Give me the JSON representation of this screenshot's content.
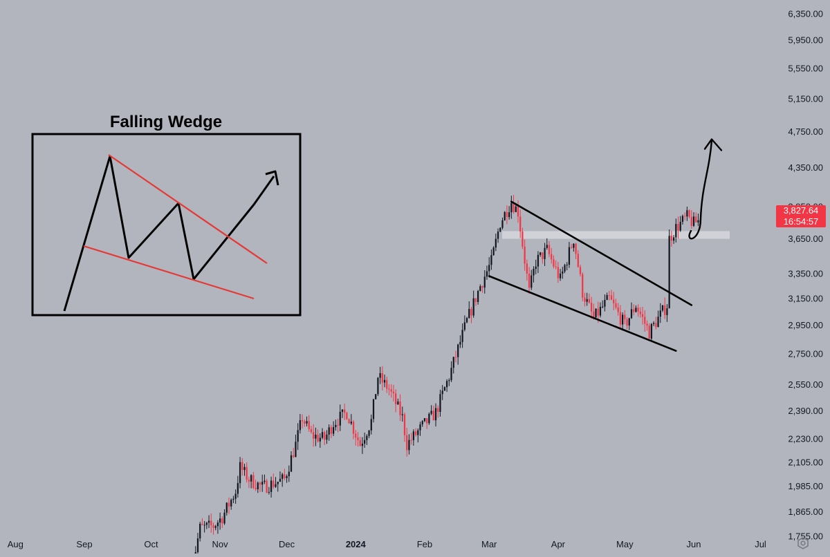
{
  "chart_data": {
    "type": "candlestick",
    "title": "",
    "xlabel": "",
    "ylabel": "",
    "y_scale": "log",
    "ylim": [
      1700,
      6500
    ],
    "y_ticks": [
      1755,
      1865,
      1985,
      2105,
      2230,
      2390,
      2550,
      2750,
      2950,
      3150,
      3350,
      3650,
      3950,
      4350,
      4750,
      5150,
      5550,
      5950,
      6350
    ],
    "y_tick_labels": [
      "1,755.00",
      "1,865.00",
      "1,985.00",
      "2,105.00",
      "2,230.00",
      "2,390.00",
      "2,550.00",
      "2,750.00",
      "2,950.00",
      "3,150.00",
      "3,350.00",
      "3,650.00",
      "3,950.00",
      "4,350.00",
      "4,750.00",
      "5,150.00",
      "5,550.00",
      "5,950.00",
      "6,350.00"
    ],
    "x_tick_labels": [
      "Aug",
      "Sep",
      "Oct",
      "Nov",
      "Dec",
      "2024",
      "Feb",
      "Mar",
      "Apr",
      "May",
      "Jun",
      "Jul"
    ],
    "price_anchors": [
      [
        "2023-10-19",
        1610
      ],
      [
        "2023-10-23",
        1790
      ],
      [
        "2023-10-29",
        1800
      ],
      [
        "2023-11-02",
        1840
      ],
      [
        "2023-11-08",
        1960
      ],
      [
        "2023-11-10",
        2080
      ],
      [
        "2023-11-14",
        2020
      ],
      [
        "2023-11-20",
        1980
      ],
      [
        "2023-11-30",
        2020
      ],
      [
        "2023-12-05",
        2200
      ],
      [
        "2023-12-08",
        2350
      ],
      [
        "2023-12-12",
        2250
      ],
      [
        "2023-12-18",
        2230
      ],
      [
        "2023-12-22",
        2320
      ],
      [
        "2023-12-28",
        2380
      ],
      [
        "2024-01-03",
        2200
      ],
      [
        "2024-01-08",
        2330
      ],
      [
        "2024-01-11",
        2600
      ],
      [
        "2024-01-16",
        2520
      ],
      [
        "2024-01-22",
        2350
      ],
      [
        "2024-01-24",
        2200
      ],
      [
        "2024-01-31",
        2300
      ],
      [
        "2024-02-06",
        2380
      ],
      [
        "2024-02-12",
        2600
      ],
      [
        "2024-02-20",
        2980
      ],
      [
        "2024-02-26",
        3250
      ],
      [
        "2024-03-02",
        3450
      ],
      [
        "2024-03-06",
        3800
      ],
      [
        "2024-03-11",
        4000
      ],
      [
        "2024-03-14",
        3900
      ],
      [
        "2024-03-19",
        3200
      ],
      [
        "2024-03-22",
        3450
      ],
      [
        "2024-03-27",
        3550
      ],
      [
        "2024-04-02",
        3300
      ],
      [
        "2024-04-08",
        3650
      ],
      [
        "2024-04-12",
        3200
      ],
      [
        "2024-04-17",
        3000
      ],
      [
        "2024-04-24",
        3150
      ],
      [
        "2024-05-01",
        2950
      ],
      [
        "2024-05-06",
        3100
      ],
      [
        "2024-05-12",
        2900
      ],
      [
        "2024-05-16",
        3000
      ],
      [
        "2024-05-20",
        3100
      ],
      [
        "2024-05-21",
        3650
      ],
      [
        "2024-05-24",
        3750
      ],
      [
        "2024-05-29",
        3850
      ],
      [
        "2024-06-01",
        3790
      ],
      [
        "2024-06-04",
        3828
      ]
    ],
    "wedge_upper": [
      [
        "2024-03-11",
        4000
      ],
      [
        "2024-05-31",
        3100
      ]
    ],
    "wedge_lower": [
      [
        "2024-03-01",
        3330
      ],
      [
        "2024-05-24",
        2770
      ]
    ],
    "support_zone": [
      3650,
      3720
    ],
    "projection_target": 4600,
    "last_price": "3,827.64",
    "countdown": "16:54:57",
    "colors": {
      "up": "#131722",
      "down": "#f23645",
      "background": "#b2b5be"
    }
  },
  "inset": {
    "title": "Falling Wedge"
  }
}
